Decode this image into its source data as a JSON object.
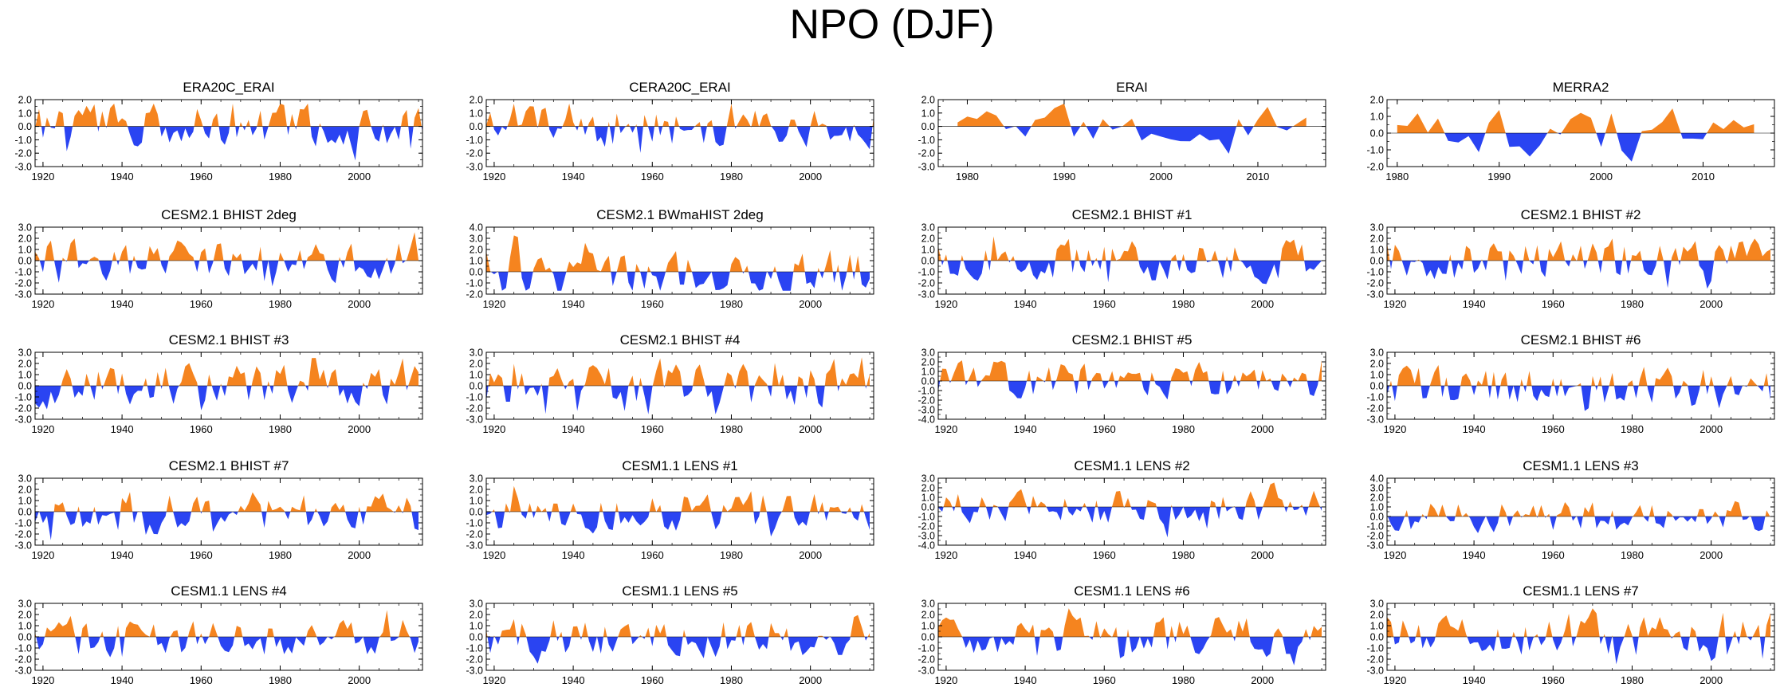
{
  "page_title": "NPO (DJF)",
  "colors": {
    "positive": "#f5841f",
    "negative": "#2a44f2",
    "axis": "#000000"
  },
  "chart_data": [
    {
      "type": "area",
      "title": "ERA20C_ERAI",
      "ylim": [
        -3,
        2
      ],
      "yticks": [
        2,
        1,
        0,
        -1,
        -2,
        -3
      ],
      "xlim": [
        1918,
        2016
      ],
      "xticks": [
        1920,
        1940,
        1960,
        1980,
        2000
      ],
      "x_start": 1918,
      "x_end": 2016,
      "amp": 1.6,
      "seed": 1
    },
    {
      "type": "area",
      "title": "CERA20C_ERAI",
      "ylim": [
        -3,
        2
      ],
      "yticks": [
        2,
        1,
        0,
        -1,
        -2,
        -3
      ],
      "xlim": [
        1918,
        2016
      ],
      "xticks": [
        1920,
        1940,
        1960,
        1980,
        2000
      ],
      "x_start": 1918,
      "x_end": 2016,
      "amp": 1.6,
      "seed": 2
    },
    {
      "type": "area",
      "title": "ERAI",
      "ylim": [
        -3,
        2
      ],
      "yticks": [
        2,
        1,
        0,
        -1,
        -2,
        -3
      ],
      "xlim": [
        1977,
        2017
      ],
      "xticks": [
        1980,
        1990,
        2000,
        2010
      ],
      "x_start": 1979,
      "x_end": 2015,
      "amp": 1.6,
      "seed": 3
    },
    {
      "type": "area",
      "title": "MERRA2",
      "ylim": [
        -2,
        2
      ],
      "yticks": [
        2,
        1,
        0,
        -1,
        -2
      ],
      "xlim": [
        1979,
        2017
      ],
      "xticks": [
        1980,
        1990,
        2000,
        2010
      ],
      "x_start": 1980,
      "x_end": 2015,
      "amp": 1.5,
      "seed": 4
    },
    {
      "type": "area",
      "title": "CESM2.1 BHIST 2deg",
      "ylim": [
        -3,
        3
      ],
      "yticks": [
        3,
        2,
        1,
        0,
        -1,
        -2,
        -3
      ],
      "xlim": [
        1918,
        2016
      ],
      "xticks": [
        1920,
        1940,
        1960,
        1980,
        2000
      ],
      "x_start": 1918,
      "x_end": 2015,
      "amp": 1.8,
      "seed": 5
    },
    {
      "type": "area",
      "title": "CESM2.1 BWmaHIST 2deg",
      "ylim": [
        -2,
        4
      ],
      "yticks": [
        4,
        3,
        2,
        1,
        0,
        -1,
        -2
      ],
      "xlim": [
        1918,
        2016
      ],
      "xticks": [
        1920,
        1940,
        1960,
        1980,
        2000
      ],
      "x_start": 1918,
      "x_end": 2015,
      "amp": 2.0,
      "seed": 6
    },
    {
      "type": "area",
      "title": "CESM2.1 BHIST #1",
      "ylim": [
        -3,
        3
      ],
      "yticks": [
        3,
        2,
        1,
        0,
        -1,
        -2,
        -3
      ],
      "xlim": [
        1918,
        2016
      ],
      "xticks": [
        1920,
        1940,
        1960,
        1980,
        2000
      ],
      "x_start": 1918,
      "x_end": 2015,
      "amp": 1.8,
      "seed": 7
    },
    {
      "type": "area",
      "title": "CESM2.1 BHIST #2",
      "ylim": [
        -3,
        3
      ],
      "yticks": [
        3,
        2,
        1,
        0,
        -1,
        -2,
        -3
      ],
      "xlim": [
        1918,
        2016
      ],
      "xticks": [
        1920,
        1940,
        1960,
        1980,
        2000
      ],
      "x_start": 1918,
      "x_end": 2015,
      "amp": 1.9,
      "seed": 8
    },
    {
      "type": "area",
      "title": "CESM2.1 BHIST #3",
      "ylim": [
        -3,
        3
      ],
      "yticks": [
        3,
        2,
        1,
        0,
        -1,
        -2,
        -3
      ],
      "xlim": [
        1918,
        2016
      ],
      "xticks": [
        1920,
        1940,
        1960,
        1980,
        2000
      ],
      "x_start": 1918,
      "x_end": 2015,
      "amp": 1.9,
      "seed": 9
    },
    {
      "type": "area",
      "title": "CESM2.1 BHIST #4",
      "ylim": [
        -3,
        3
      ],
      "yticks": [
        3,
        2,
        1,
        0,
        -1,
        -2,
        -3
      ],
      "xlim": [
        1918,
        2016
      ],
      "xticks": [
        1920,
        1940,
        1960,
        1980,
        2000
      ],
      "x_start": 1918,
      "x_end": 2015,
      "amp": 1.9,
      "seed": 10
    },
    {
      "type": "area",
      "title": "CESM2.1 BHIST #5",
      "ylim": [
        -4,
        3
      ],
      "yticks": [
        3,
        2,
        1,
        0,
        -1,
        -2,
        -3,
        -4
      ],
      "xlim": [
        1918,
        2016
      ],
      "xticks": [
        1920,
        1940,
        1960,
        1980,
        2000
      ],
      "x_start": 1918,
      "x_end": 2015,
      "amp": 1.9,
      "seed": 11
    },
    {
      "type": "area",
      "title": "CESM2.1 BHIST #6",
      "ylim": [
        -3,
        3
      ],
      "yticks": [
        3,
        2,
        1,
        0,
        -1,
        -2,
        -3
      ],
      "xlim": [
        1918,
        2016
      ],
      "xticks": [
        1920,
        1940,
        1960,
        1980,
        2000
      ],
      "x_start": 1918,
      "x_end": 2015,
      "amp": 1.8,
      "seed": 12
    },
    {
      "type": "area",
      "title": "CESM2.1 BHIST #7",
      "ylim": [
        -3,
        3
      ],
      "yticks": [
        3,
        2,
        1,
        0,
        -1,
        -2,
        -3
      ],
      "xlim": [
        1918,
        2016
      ],
      "xticks": [
        1920,
        1940,
        1960,
        1980,
        2000
      ],
      "x_start": 1918,
      "x_end": 2015,
      "amp": 1.9,
      "seed": 13
    },
    {
      "type": "area",
      "title": "CESM1.1 LENS #1",
      "ylim": [
        -3,
        3
      ],
      "yticks": [
        3,
        2,
        1,
        0,
        -1,
        -2,
        -3
      ],
      "xlim": [
        1918,
        2016
      ],
      "xticks": [
        1920,
        1940,
        1960,
        1980,
        2000
      ],
      "x_start": 1918,
      "x_end": 2015,
      "amp": 1.8,
      "seed": 14
    },
    {
      "type": "area",
      "title": "CESM1.1 LENS #2",
      "ylim": [
        -4,
        3
      ],
      "yticks": [
        3,
        2,
        1,
        0,
        -1,
        -2,
        -3,
        -4
      ],
      "xlim": [
        1918,
        2016
      ],
      "xticks": [
        1920,
        1940,
        1960,
        1980,
        2000
      ],
      "x_start": 1918,
      "x_end": 2015,
      "amp": 1.8,
      "seed": 15
    },
    {
      "type": "area",
      "title": "CESM1.1 LENS #3",
      "ylim": [
        -3,
        4
      ],
      "yticks": [
        4,
        3,
        2,
        1,
        0,
        -1,
        -2,
        -3
      ],
      "xlim": [
        1918,
        2016
      ],
      "xticks": [
        1920,
        1940,
        1960,
        1980,
        2000
      ],
      "x_start": 1918,
      "x_end": 2015,
      "amp": 1.8,
      "seed": 16
    },
    {
      "type": "area",
      "title": "CESM1.1 LENS #4",
      "ylim": [
        -3,
        3
      ],
      "yticks": [
        3,
        2,
        1,
        0,
        -1,
        -2,
        -3
      ],
      "xlim": [
        1918,
        2016
      ],
      "xticks": [
        1920,
        1940,
        1960,
        1980,
        2000
      ],
      "x_start": 1918,
      "x_end": 2015,
      "amp": 1.8,
      "seed": 17
    },
    {
      "type": "area",
      "title": "CESM1.1 LENS #5",
      "ylim": [
        -3,
        3
      ],
      "yticks": [
        3,
        2,
        1,
        0,
        -1,
        -2,
        -3
      ],
      "xlim": [
        1918,
        2016
      ],
      "xticks": [
        1920,
        1940,
        1960,
        1980,
        2000
      ],
      "x_start": 1918,
      "x_end": 2015,
      "amp": 1.8,
      "seed": 18
    },
    {
      "type": "area",
      "title": "CESM1.1 LENS #6",
      "ylim": [
        -3,
        3
      ],
      "yticks": [
        3,
        2,
        1,
        0,
        -1,
        -2,
        -3
      ],
      "xlim": [
        1918,
        2016
      ],
      "xticks": [
        1920,
        1940,
        1960,
        1980,
        2000
      ],
      "x_start": 1918,
      "x_end": 2015,
      "amp": 1.8,
      "seed": 19
    },
    {
      "type": "area",
      "title": "CESM1.1 LENS #7",
      "ylim": [
        -3,
        3
      ],
      "yticks": [
        3,
        2,
        1,
        0,
        -1,
        -2,
        -3
      ],
      "xlim": [
        1918,
        2016
      ],
      "xticks": [
        1920,
        1940,
        1960,
        1980,
        2000
      ],
      "x_start": 1918,
      "x_end": 2015,
      "amp": 1.8,
      "seed": 20
    }
  ]
}
